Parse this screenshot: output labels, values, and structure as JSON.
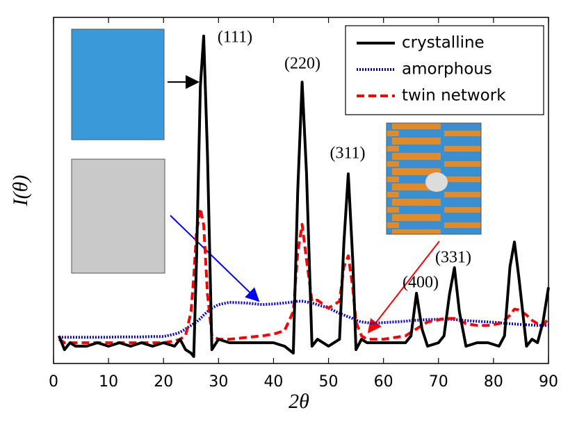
{
  "chart_data": {
    "type": "line",
    "xlabel": "2θ",
    "ylabel": "I(θ)",
    "annotations": [
      "(111)",
      "(220)",
      "(311)",
      "(400)",
      "(331)"
    ],
    "x": [
      1,
      2,
      3,
      4,
      6,
      8,
      10,
      12,
      14,
      16,
      18,
      20,
      22,
      23,
      24,
      25,
      25.5,
      26,
      26.7,
      27.3,
      28,
      28.8,
      30,
      32,
      35,
      38,
      40,
      42,
      43.6,
      44.4,
      45.2,
      46,
      47,
      48,
      50,
      52,
      52.8,
      53.6,
      54.4,
      55,
      56,
      57,
      58,
      60,
      62,
      64,
      65,
      66,
      67,
      68,
      70,
      71,
      72,
      72.9,
      73.8,
      75,
      77,
      79,
      81,
      82,
      83,
      83.8,
      84.6,
      86,
      87,
      88,
      89,
      90
    ],
    "series": [
      {
        "name": "crystalline",
        "color": "#000000",
        "style": "solid",
        "values": [
          8,
          4,
          6,
          5,
          5,
          6,
          5,
          6,
          5,
          6,
          5,
          6,
          5,
          7,
          4,
          3,
          2,
          30,
          80,
          94.6,
          60,
          4,
          7,
          6,
          6,
          6,
          6,
          5,
          3,
          50,
          81.3,
          55,
          5,
          7,
          5,
          7,
          35,
          54.8,
          30,
          4,
          7,
          6,
          6,
          6,
          6,
          6,
          8,
          20.3,
          10,
          5,
          6,
          8,
          20,
          27.7,
          15,
          5,
          6,
          6,
          5,
          8,
          28,
          35.1,
          25,
          5,
          7,
          6,
          12,
          22
        ]
      },
      {
        "name": "amorphous",
        "color": "#0000cc",
        "style": "dotted",
        "values": [
          7.6,
          7.6,
          7.6,
          7.6,
          7.6,
          7.6,
          7.6,
          7.7,
          7.7,
          7.7,
          7.8,
          7.8,
          8.5,
          9,
          10,
          11,
          11.5,
          12,
          13,
          14,
          15,
          16,
          17,
          17.7,
          17.5,
          17,
          17.2,
          17.5,
          17.8,
          18,
          18,
          17.8,
          17.5,
          17,
          16,
          14.5,
          14,
          13.5,
          13,
          12.5,
          12,
          11.8,
          11.6,
          11.8,
          12,
          12.2,
          12.4,
          12.5,
          12.6,
          12.7,
          12.8,
          12.8,
          12.8,
          12.7,
          12.6,
          12.4,
          12.2,
          12,
          11.8,
          11.6,
          11.5,
          11.4,
          11.3,
          11.2,
          11.1,
          11,
          11,
          11
        ]
      },
      {
        "name": "twin network",
        "color": "#ff0000",
        "style": "dashed",
        "values": [
          7,
          6,
          6,
          6,
          6,
          6,
          6,
          6,
          6,
          6,
          6,
          6,
          6.5,
          7,
          8,
          15,
          25,
          38,
          44.8,
          40,
          20,
          8,
          7,
          7,
          7.5,
          8,
          8.5,
          9.5,
          15,
          32,
          40.2,
          30,
          18,
          18.3,
          16,
          18,
          28,
          31.1,
          22,
          12,
          8,
          7,
          7,
          7,
          7.5,
          8,
          9,
          10,
          11,
          12,
          12.6,
          13,
          13,
          13,
          12.5,
          11.5,
          11,
          11,
          11.5,
          12.5,
          14,
          15.7,
          15.5,
          14,
          12.5,
          11.5,
          11,
          13
        ]
      }
    ],
    "xlim": [
      0,
      90
    ],
    "xticks": [
      0,
      10,
      20,
      30,
      40,
      50,
      60,
      70,
      80,
      90
    ],
    "ylim": [
      0,
      100
    ],
    "legend": "upper right"
  }
}
